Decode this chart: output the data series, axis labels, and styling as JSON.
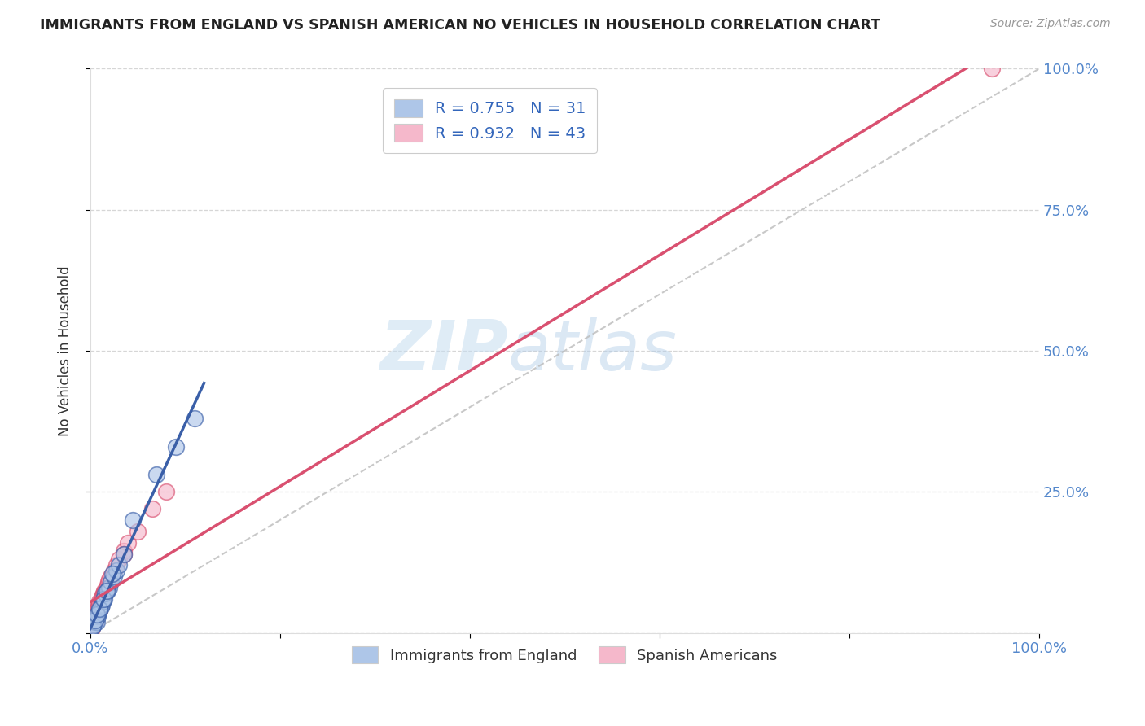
{
  "title": "IMMIGRANTS FROM ENGLAND VS SPANISH AMERICAN NO VEHICLES IN HOUSEHOLD CORRELATION CHART",
  "source": "Source: ZipAtlas.com",
  "ylabel": "No Vehicles in Household",
  "legend_label1": "Immigrants from England",
  "legend_label2": "Spanish Americans",
  "R1": 0.755,
  "N1": 31,
  "R2": 0.932,
  "N2": 43,
  "color1": "#aec6e8",
  "color2": "#f5b8cb",
  "line_color1": "#3a5fa8",
  "line_color2": "#d95070",
  "scatter1_x": [
    0.2,
    0.4,
    0.5,
    0.6,
    0.7,
    0.8,
    0.9,
    1.0,
    1.1,
    1.2,
    1.3,
    1.5,
    1.6,
    1.8,
    2.0,
    2.2,
    2.5,
    2.8,
    3.0,
    3.5,
    0.3,
    0.5,
    0.7,
    1.0,
    1.4,
    1.7,
    2.3,
    4.5,
    7.0,
    9.0,
    11.0
  ],
  "scatter1_y": [
    1.0,
    1.5,
    2.0,
    2.5,
    2.0,
    3.0,
    3.5,
    4.0,
    4.5,
    5.0,
    5.5,
    6.0,
    7.0,
    7.5,
    8.0,
    9.0,
    10.0,
    11.0,
    12.0,
    14.0,
    1.2,
    2.2,
    3.2,
    4.2,
    6.0,
    7.5,
    10.5,
    20.0,
    28.0,
    33.0,
    38.0
  ],
  "scatter2_x": [
    0.1,
    0.2,
    0.3,
    0.3,
    0.4,
    0.4,
    0.5,
    0.5,
    0.6,
    0.6,
    0.7,
    0.7,
    0.8,
    0.8,
    0.9,
    1.0,
    1.0,
    1.1,
    1.2,
    1.2,
    1.3,
    1.4,
    1.5,
    1.6,
    1.7,
    1.8,
    1.9,
    2.0,
    2.2,
    2.5,
    2.8,
    3.0,
    3.5,
    4.0,
    5.0,
    6.5,
    8.0,
    3.5,
    1.5,
    1.0,
    0.5,
    0.6,
    95.0
  ],
  "scatter2_y": [
    0.5,
    1.0,
    1.5,
    2.0,
    2.0,
    2.5,
    2.5,
    3.0,
    3.0,
    3.5,
    3.5,
    4.0,
    4.0,
    4.5,
    4.5,
    5.0,
    5.5,
    5.5,
    6.0,
    6.5,
    6.5,
    7.0,
    7.5,
    7.5,
    8.0,
    8.5,
    9.0,
    9.5,
    10.0,
    11.0,
    12.0,
    13.0,
    14.5,
    16.0,
    18.0,
    22.0,
    25.0,
    14.0,
    7.0,
    4.0,
    2.0,
    2.5,
    100.0
  ],
  "watermark_zip": "ZIP",
  "watermark_atlas": "atlas",
  "background_color": "#ffffff",
  "grid_color": "#cccccc",
  "ref_line_color": "#bbbbbb",
  "tick_color": "#5588cc",
  "title_color": "#222222",
  "source_color": "#999999"
}
